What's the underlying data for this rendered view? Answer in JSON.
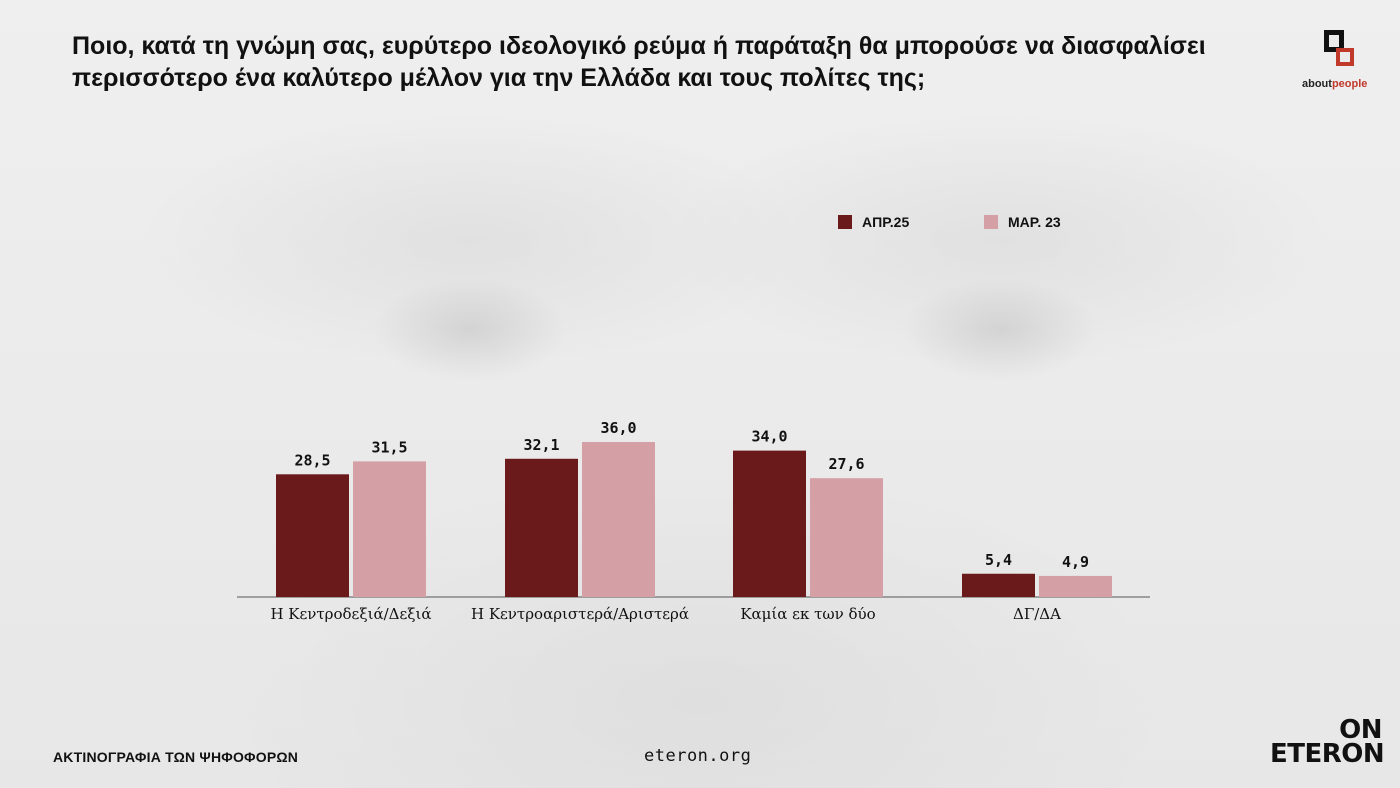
{
  "title_lines": [
    "Ποιο, κατά τη γνώμη σας, ευρύτερο ιδεολογικό ρεύμα ή παράταξη θα μπορούσε να διασφαλίσει",
    "περισσότερο ένα καλύτερο μέλλον για την Ελλάδα και τους πολίτες της;"
  ],
  "brand_top": {
    "prefix": "about",
    "suffix": "people",
    "icon": "aboutpeople-logo-icon"
  },
  "footer": {
    "left": "ΑΚΤΙΝΟΓΡΑΦΙΑ ΤΩΝ ΨΗΦΟΦΟΡΩΝ",
    "center": "eteron.org",
    "brand_line1": "ON",
    "brand_line2": "ETERON"
  },
  "chart_data": {
    "type": "bar",
    "categories": [
      "Η Κεντροδεξιά/Δεξιά",
      "Η Κεντροαριστερά/Αριστερά",
      "Καμία εκ των δύο",
      "ΔΓ/ΔΑ"
    ],
    "series": [
      {
        "name": "ΑΠΡ.25",
        "values": [
          28.5,
          32.1,
          34.0,
          5.4
        ],
        "labels": [
          "28,5",
          "32,1",
          "34,0",
          "5,4"
        ],
        "color": "#6b1a1c"
      },
      {
        "name": "ΜΑΡ. 23",
        "values": [
          31.5,
          36.0,
          27.6,
          4.9
        ],
        "labels": [
          "31,5",
          "36,0",
          "27,6",
          "4,9"
        ],
        "color": "#d4a0a6"
      }
    ],
    "ylim": [
      0,
      36
    ],
    "grid": false,
    "legend": "top-right",
    "xlabel": "",
    "ylabel": ""
  }
}
